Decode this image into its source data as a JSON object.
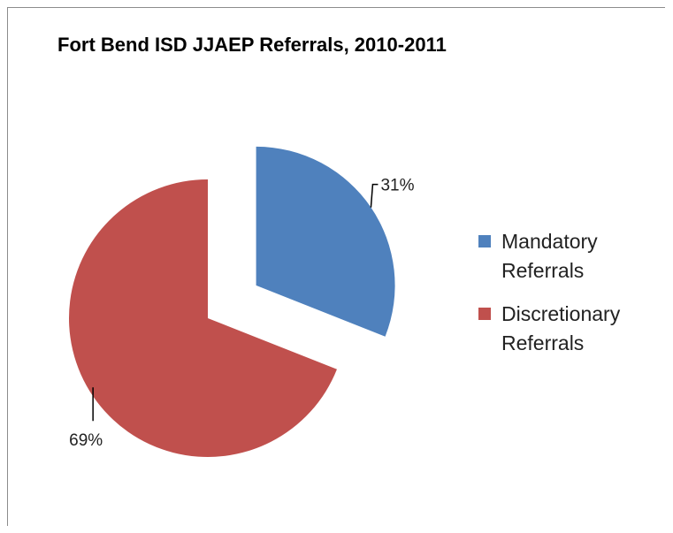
{
  "chart_data": {
    "type": "pie",
    "title": "Fort Bend ISD JJAEP Referrals, 2010-2011",
    "slices": [
      {
        "name": "Mandatory Referrals",
        "value": 31,
        "label": "31%",
        "color": "#4f81bd",
        "exploded": true
      },
      {
        "name": "Discretionary Referrals",
        "value": 69,
        "label": "69%",
        "color": "#c0504d",
        "exploded": false
      }
    ],
    "legend_position": "right"
  }
}
